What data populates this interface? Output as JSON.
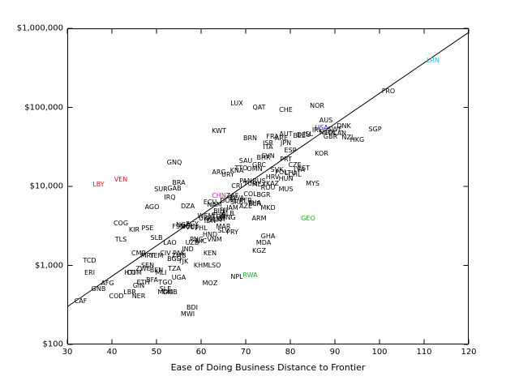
{
  "chart_data": {
    "type": "scatter",
    "title": "",
    "xlabel": "Ease of Doing Business Distance to Frontier",
    "ylabel": "",
    "xlim": [
      30,
      120
    ],
    "ylim": [
      100,
      1000000
    ],
    "y_scale": "log",
    "grid": false,
    "legend": "none",
    "x_ticks": [
      30,
      40,
      50,
      60,
      70,
      80,
      90,
      100,
      110,
      120
    ],
    "y_ticks": [
      {
        "v": 100,
        "label": "$100"
      },
      {
        "v": 1000,
        "label": "$1,000"
      },
      {
        "v": 10000,
        "label": "$10,000"
      },
      {
        "v": 100000,
        "label": "$100,000"
      },
      {
        "v": 1000000,
        "label": "$1,000,000"
      }
    ],
    "fit_line": {
      "x1": 30,
      "y1": 300,
      "x2": 120,
      "y2": 890000
    },
    "colors": {
      "k": "#000000",
      "cyan": "#00c8d7",
      "blue": "#2020cc",
      "red": "#cc2020",
      "magenta": "#cc20cc",
      "green": "#1faa1f"
    },
    "points": [
      [
        "LRN",
        112,
        390000,
        "cyan"
      ],
      [
        "FRO",
        102,
        160000,
        "k"
      ],
      [
        "NOR",
        86,
        103000,
        "k"
      ],
      [
        "LUX",
        68,
        110000,
        "k"
      ],
      [
        "QAT",
        73,
        100000,
        "k"
      ],
      [
        "CHE",
        79,
        92000,
        "k"
      ],
      [
        "AUS",
        88,
        68000,
        "k"
      ],
      [
        "DNK",
        92,
        58000,
        "k"
      ],
      [
        "USA",
        87,
        55000,
        "blue"
      ],
      [
        "SGP",
        99,
        52000,
        "k"
      ],
      [
        "SWE",
        90,
        52000,
        "k"
      ],
      [
        "NLD",
        88,
        48000,
        "k"
      ],
      [
        "IRL",
        86,
        51000,
        "k"
      ],
      [
        "KWT",
        64,
        50000,
        "k"
      ],
      [
        "FRA",
        76,
        42000,
        "k"
      ],
      [
        "AUT",
        79,
        45000,
        "k"
      ],
      [
        "DEU",
        83,
        44000,
        "k"
      ],
      [
        "GBR",
        89,
        42000,
        "k"
      ],
      [
        "CAN",
        91,
        46000,
        "k"
      ],
      [
        "FIN",
        89,
        46000,
        "k"
      ],
      [
        "BEL",
        82,
        43000,
        "k"
      ],
      [
        "ISL",
        84,
        45000,
        "k"
      ],
      [
        "NZL",
        93,
        41000,
        "k"
      ],
      [
        "HKG",
        95,
        38000,
        "k"
      ],
      [
        "ARE",
        78,
        40000,
        "k"
      ],
      [
        "BRN",
        71,
        40000,
        "k"
      ],
      [
        "ISR",
        75,
        35000,
        "k"
      ],
      [
        "JPN",
        79,
        35000,
        "k"
      ],
      [
        "ITA",
        75,
        31000,
        "k"
      ],
      [
        "ESP",
        80,
        28000,
        "k"
      ],
      [
        "KOR",
        87,
        26000,
        "k"
      ],
      [
        "BHR",
        74,
        23000,
        "k"
      ],
      [
        "PRT",
        79,
        22000,
        "k"
      ],
      [
        "SVN",
        75,
        24000,
        "k"
      ],
      [
        "SAU",
        70,
        21000,
        "k"
      ],
      [
        "GRC",
        73,
        18500,
        "k"
      ],
      [
        "CZE",
        81,
        18500,
        "k"
      ],
      [
        "EST",
        83,
        17000,
        "k"
      ],
      [
        "TTO",
        69,
        17000,
        "k"
      ],
      [
        "OMN",
        72,
        16500,
        "k"
      ],
      [
        "SVK",
        77,
        16000,
        "k"
      ],
      [
        "GNQ",
        54,
        20000,
        "k"
      ],
      [
        "ARG",
        64,
        15000,
        "k"
      ],
      [
        "KNA",
        68,
        15500,
        "k"
      ],
      [
        "LVA",
        82,
        16000,
        "k"
      ],
      [
        "LTU",
        80,
        14500,
        "k"
      ],
      [
        "POL",
        78,
        15000,
        "k"
      ],
      [
        "HUN",
        79,
        12500,
        "k"
      ],
      [
        "HRV",
        76,
        13000,
        "k"
      ],
      [
        "CHL",
        81,
        14000,
        "k"
      ],
      [
        "URY",
        66,
        14000,
        "k"
      ],
      [
        "RUS",
        73,
        11500,
        "k"
      ],
      [
        "KAZ",
        76,
        10800,
        "k"
      ],
      [
        "TUR",
        71,
        10800,
        "k"
      ],
      [
        "MYS",
        85,
        10800,
        "k"
      ],
      [
        "MEX",
        73,
        10500,
        "k"
      ],
      [
        "VEN",
        42,
        12000,
        "red"
      ],
      [
        "LBY",
        37,
        10500,
        "red"
      ],
      [
        "BRA",
        55,
        11000,
        "k"
      ],
      [
        "PAN",
        70,
        11500,
        "k"
      ],
      [
        "CRI",
        68,
        10000,
        "k"
      ],
      [
        "ROU",
        75,
        9500,
        "k"
      ],
      [
        "MUS",
        79,
        9100,
        "k"
      ],
      [
        "SUR",
        51,
        9000,
        "k"
      ],
      [
        "GAB",
        54,
        9300,
        "k"
      ],
      [
        "BGR",
        74,
        7700,
        "k"
      ],
      [
        "COL",
        71,
        7900,
        "k"
      ],
      [
        "ZAF",
        67,
        7600,
        "k"
      ],
      [
        "CHN",
        64,
        7500,
        "magenta"
      ],
      [
        "IRQ",
        53,
        7200,
        "k"
      ],
      [
        "PER",
        70,
        6500,
        "k"
      ],
      [
        "DOM",
        66,
        6500,
        "k"
      ],
      [
        "ECU",
        62,
        6300,
        "k"
      ],
      [
        "THA",
        72,
        6100,
        "k"
      ],
      [
        "SRB",
        68,
        6200,
        "k"
      ],
      [
        "BWA",
        68,
        7000,
        "k"
      ],
      [
        "NAM",
        63,
        5800,
        "k"
      ],
      [
        "DZA",
        57,
        5600,
        "k"
      ],
      [
        "BLR",
        72,
        6000,
        "k"
      ],
      [
        "AZE",
        70,
        5500,
        "k"
      ],
      [
        "JAM",
        67,
        5300,
        "k"
      ],
      [
        "MKD",
        75,
        5300,
        "k"
      ],
      [
        "AGO",
        49,
        5400,
        "k"
      ],
      [
        "BIH",
        64,
        4800,
        "k"
      ],
      [
        "FJI",
        65,
        4900,
        "k"
      ],
      [
        "ALB",
        66,
        4500,
        "k"
      ],
      [
        "TUN",
        64,
        4300,
        "k"
      ],
      [
        "WSM",
        61,
        4200,
        "k"
      ],
      [
        "TON",
        64,
        4100,
        "k"
      ],
      [
        "MNG",
        66,
        4000,
        "k"
      ],
      [
        "GEO",
        84,
        3900,
        "green"
      ],
      [
        "ARM",
        73,
        3900,
        "k"
      ],
      [
        "LKA",
        64,
        3800,
        "k"
      ],
      [
        "UKR",
        61,
        3900,
        "k"
      ],
      [
        "GTM",
        63,
        3700,
        "k"
      ],
      [
        "IDN",
        62,
        3600,
        "k"
      ],
      [
        "COG",
        42,
        3400,
        "k"
      ],
      [
        "EGY",
        58,
        3300,
        "k"
      ],
      [
        "NGA",
        56,
        3200,
        "k"
      ],
      [
        "MAR",
        65,
        3100,
        "k"
      ],
      [
        "BOL",
        57,
        3100,
        "k"
      ],
      [
        "FSM",
        55,
        3100,
        "k"
      ],
      [
        "PHL",
        60,
        2900,
        "k"
      ],
      [
        "VUT",
        58,
        3000,
        "k"
      ],
      [
        "PSE",
        48,
        2900,
        "k"
      ],
      [
        "KIR",
        45,
        2800,
        "k"
      ],
      [
        "SLV",
        65,
        2700,
        "k"
      ],
      [
        "PRY",
        67,
        2600,
        "k"
      ],
      [
        "HND",
        62,
        2400,
        "k"
      ],
      [
        "GHA",
        75,
        2300,
        "k"
      ],
      [
        "SLB",
        50,
        2200,
        "k"
      ],
      [
        "TLS",
        42,
        2100,
        "k"
      ],
      [
        "VNM",
        63,
        2100,
        "k"
      ],
      [
        "PNG",
        59,
        2100,
        "k"
      ],
      [
        "NIC",
        60,
        2000,
        "k"
      ],
      [
        "MDA",
        74,
        1900,
        "k"
      ],
      [
        "LAO",
        53,
        1900,
        "k"
      ],
      [
        "UZB",
        58,
        1900,
        "k"
      ],
      [
        "IND",
        57,
        1600,
        "k"
      ],
      [
        "KGZ",
        73,
        1500,
        "k"
      ],
      [
        "PAK",
        55,
        1400,
        "k"
      ],
      [
        "KEN",
        62,
        1400,
        "k"
      ],
      [
        "CMR",
        46,
        1400,
        "k"
      ],
      [
        "CIV",
        52,
        1400,
        "k"
      ],
      [
        "MRT",
        48,
        1300,
        "k"
      ],
      [
        "YEM",
        50,
        1300,
        "k"
      ],
      [
        "ZMB",
        55,
        1300,
        "k"
      ],
      [
        "BGD",
        54,
        1200,
        "k"
      ],
      [
        "TCD",
        35,
        1150,
        "k"
      ],
      [
        "TJK",
        56,
        1100,
        "k"
      ],
      [
        "KHM",
        60,
        1000,
        "k"
      ],
      [
        "LSO",
        63,
        1000,
        "k"
      ],
      [
        "SEN",
        48,
        1000,
        "k"
      ],
      [
        "TZA",
        54,
        900,
        "k"
      ],
      [
        "ZWE",
        47,
        900,
        "k"
      ],
      [
        "ERI",
        35,
        800,
        "k"
      ],
      [
        "HTI",
        44,
        800,
        "k"
      ],
      [
        "COM",
        45,
        800,
        "k"
      ],
      [
        "MLI",
        51,
        800,
        "k"
      ],
      [
        "BEN",
        50,
        850,
        "k"
      ],
      [
        "NPL",
        68,
        710,
        "k"
      ],
      [
        "RWA",
        71,
        740,
        "green"
      ],
      [
        "UGA",
        55,
        700,
        "k"
      ],
      [
        "BFA",
        49,
        650,
        "k"
      ],
      [
        "TGO",
        52,
        600,
        "k"
      ],
      [
        "AFG",
        39,
        590,
        "k"
      ],
      [
        "MOZ",
        62,
        590,
        "k"
      ],
      [
        "ETH",
        47,
        600,
        "k"
      ],
      [
        "GIN",
        46,
        550,
        "k"
      ],
      [
        "SLE",
        52,
        500,
        "k"
      ],
      [
        "GNB",
        37,
        500,
        "k"
      ],
      [
        "GMB",
        53,
        450,
        "k"
      ],
      [
        "MDG",
        52,
        450,
        "k"
      ],
      [
        "LBR",
        44,
        450,
        "k"
      ],
      [
        "COD",
        41,
        400,
        "k"
      ],
      [
        "NER",
        46,
        400,
        "k"
      ],
      [
        "CAF",
        33,
        350,
        "k"
      ],
      [
        "BDI",
        58,
        290,
        "k"
      ],
      [
        "MWI",
        57,
        240,
        "k"
      ]
    ]
  }
}
